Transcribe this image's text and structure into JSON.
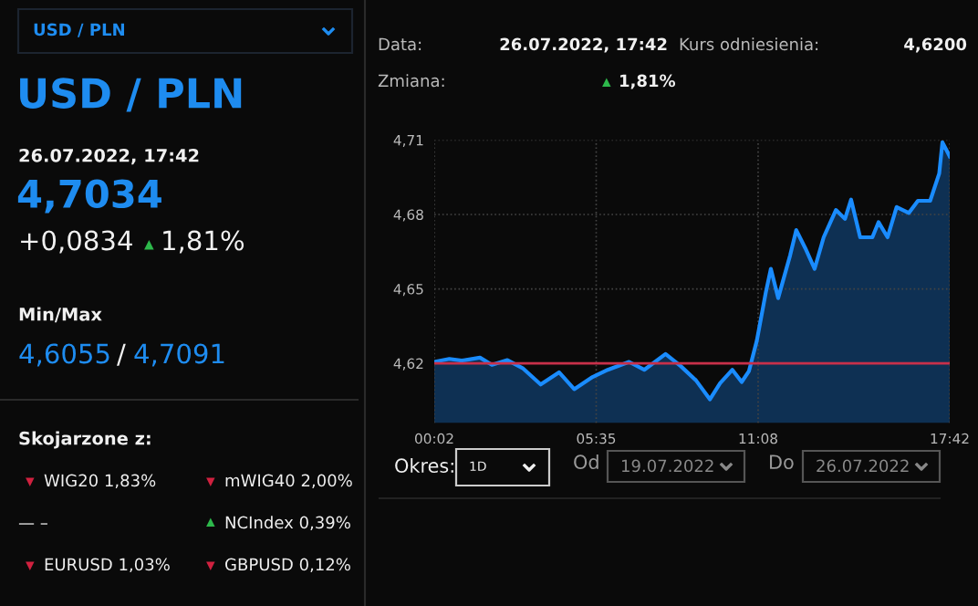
{
  "chart_data": [
    {
      "type": "other",
      "title": "USD / PLN",
      "annotations": [
        "USD / PLN",
        "26.07.2022, 17:42",
        "4,7034",
        "+0,0834",
        "▲",
        "1,81%",
        "Min/Max",
        "4,6055",
        "/",
        "4,7091",
        "Skojarzone z:",
        "▼",
        "WIG20 1,83%",
        "▼",
        "mWIG40 2,00%",
        "— –",
        "▲",
        "NCIndex 0,39%",
        "▼",
        "EURUSD 1,03%",
        "▼",
        "GBPUSD 0,12%"
      ]
    },
    {
      "type": "area",
      "x": [
        0.0333,
        0.55,
        0.97,
        1.6,
        2.01,
        2.54,
        3.06,
        3.68,
        4.31,
        4.83,
        5.46,
        5.98,
        6.71,
        7.23,
        7.96,
        8.48,
        9.0,
        9.48,
        9.83,
        10.25,
        10.57,
        10.82,
        11.09,
        11.4,
        11.57,
        11.82,
        12.23,
        12.44,
        12.75,
        13.07,
        13.38,
        13.8,
        14.11,
        14.32,
        14.63,
        15.05,
        15.26,
        15.57,
        15.88,
        16.3,
        16.61,
        17.03,
        17.34,
        17.45,
        17.7
      ],
      "series": [
        {
          "color": "#1a8cff",
          "values": [
            4.6206,
            4.6218,
            4.6211,
            4.6223,
            4.6194,
            4.6213,
            4.6181,
            4.6115,
            4.6164,
            4.6096,
            4.6145,
            4.6174,
            4.6206,
            4.6174,
            4.6238,
            4.6189,
            4.6132,
            4.6055,
            4.612,
            4.6174,
            4.6125,
            4.6169,
            4.6292,
            4.6488,
            4.6581,
            4.6463,
            4.6635,
            4.6737,
            4.6664,
            4.6581,
            4.6708,
            4.6818,
            4.6782,
            4.686,
            4.6708,
            4.6708,
            4.6769,
            4.6708,
            4.683,
            4.6806,
            4.6855,
            4.6855,
            4.6965,
            4.7091,
            4.7034
          ]
        }
      ],
      "xlim": [
        0.0333,
        17.7
      ],
      "xticks": [
        {
          "value": 0.0333,
          "label": "00:02"
        },
        {
          "value": 5.5833,
          "label": "05:35"
        },
        {
          "value": 11.1333,
          "label": "11:08"
        },
        {
          "value": 17.7,
          "label": "17:42"
        }
      ],
      "ylim": [
        4.596,
        4.71
      ],
      "yticks": [
        {
          "value": 4.62,
          "label": "4,62"
        },
        {
          "value": 4.65,
          "label": "4,65"
        },
        {
          "value": 4.68,
          "label": "4,68"
        },
        {
          "value": 4.71,
          "label": "4,71"
        }
      ],
      "ref_lines": [
        {
          "axis": "y",
          "value": 4.62,
          "color": "#c8304a"
        }
      ],
      "grid": true,
      "annotations": [
        "Data:",
        "26.07.2022, 17:42",
        "Kurs odniesienia:",
        "4,6200",
        "Zmiana:",
        "▲",
        "1,81%",
        "Okres:",
        "1D",
        "Od",
        "19.07.2022",
        "Do",
        "26.07.2022"
      ]
    }
  ]
}
